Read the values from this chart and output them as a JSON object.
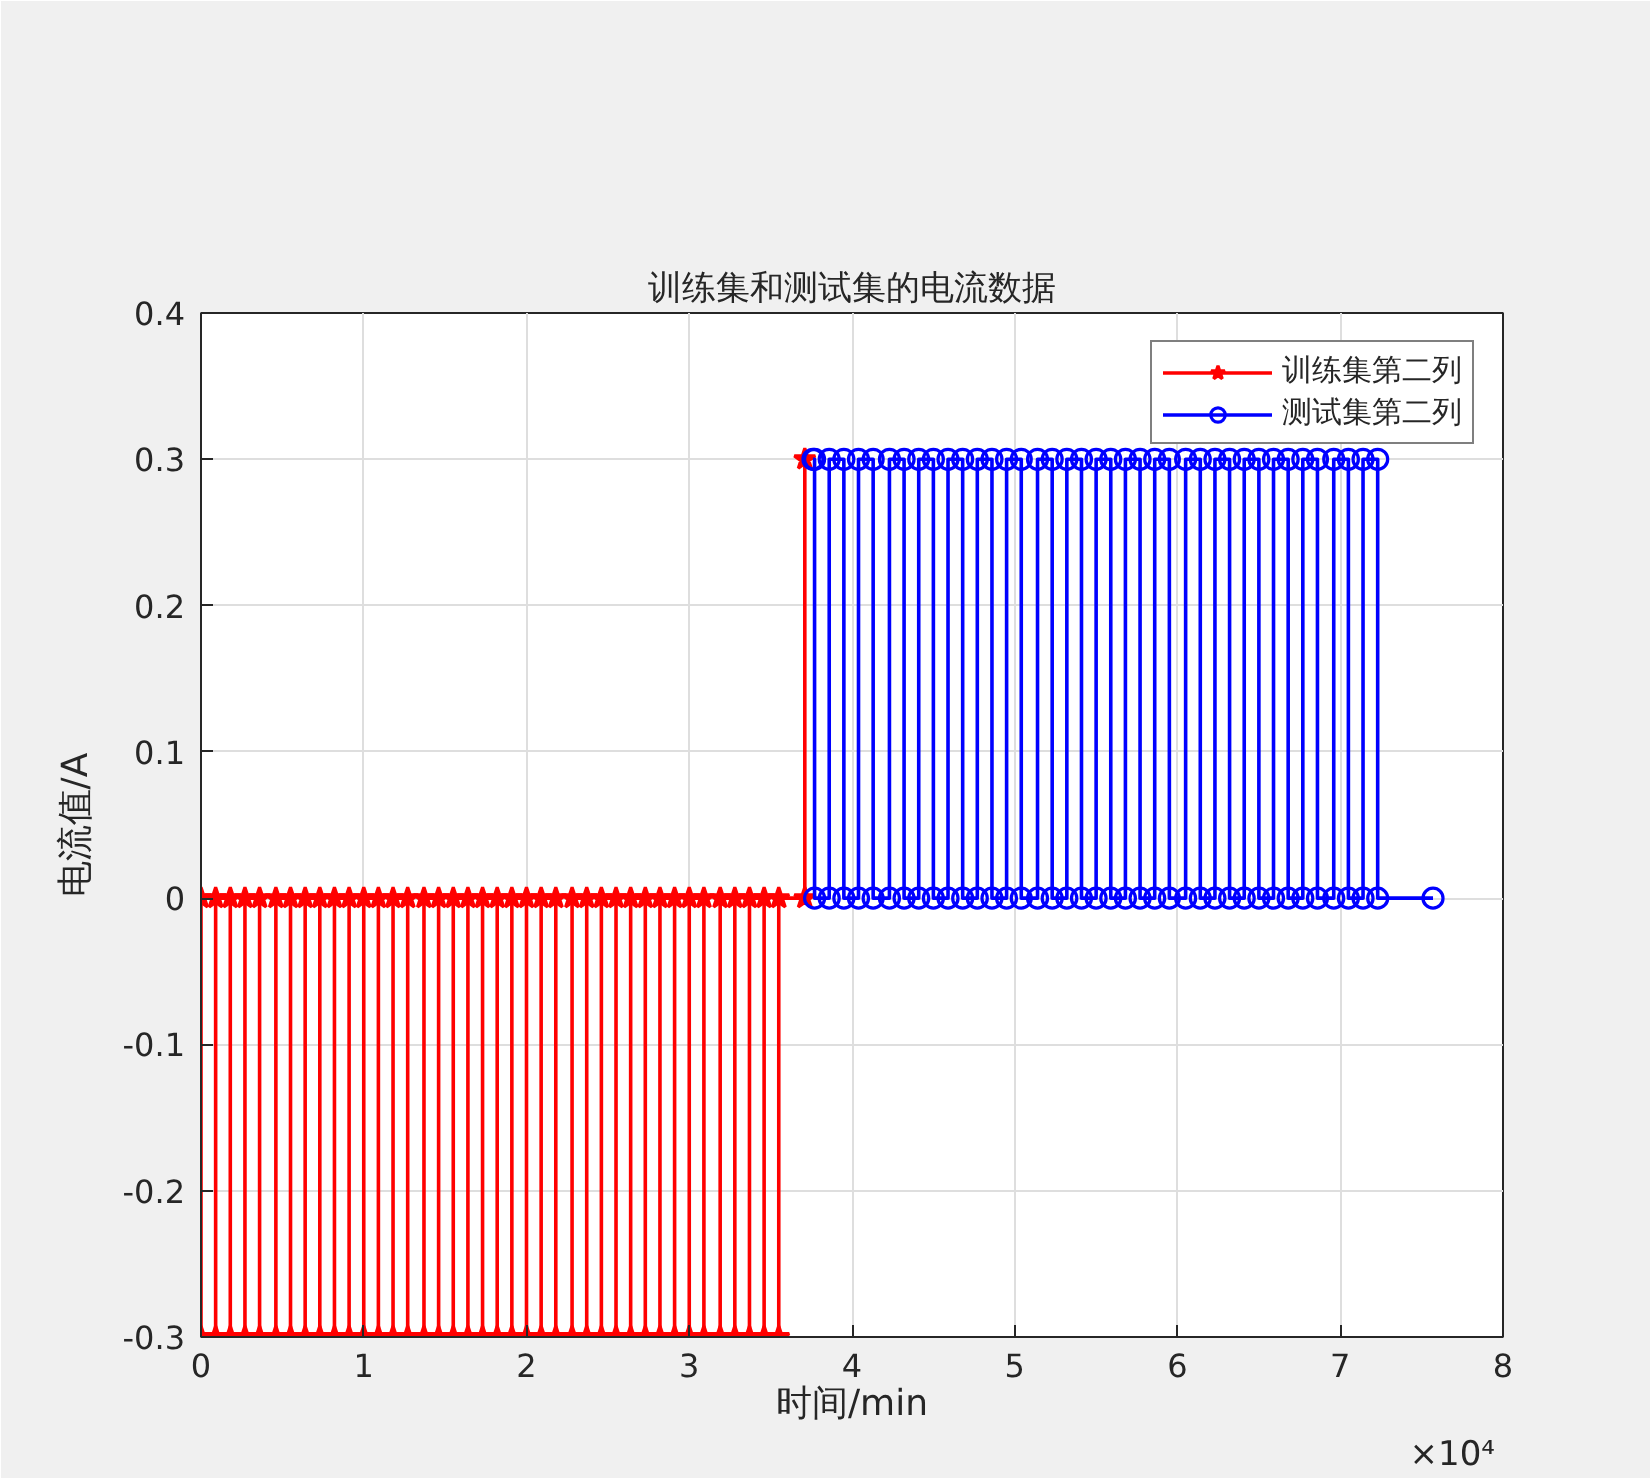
{
  "chart_data": {
    "type": "line",
    "title": "训练集和测试集的电流数据",
    "xlabel": "时间/min",
    "ylabel": "电流值/A",
    "xlim": [
      0,
      8
    ],
    "ylim": [
      -0.3,
      0.4
    ],
    "xticks": [
      0,
      1,
      2,
      3,
      4,
      5,
      6,
      7,
      8
    ],
    "yticks": [
      -0.3,
      -0.2,
      -0.1,
      0,
      0.1,
      0.2,
      0.3,
      0.4
    ],
    "annotations": [
      "×10⁴"
    ],
    "grid": true,
    "legend": "top right",
    "line_style": "solid",
    "series": [
      {
        "name": "训练集第二列",
        "color": "#ff0000",
        "marker": "star",
        "x": [
          0,
          0,
          0.09,
          0.09,
          0.18,
          0.18,
          0.27,
          0.27,
          0.36,
          0.36,
          0.46,
          0.46,
          0.55,
          0.55,
          0.64,
          0.64,
          0.73,
          0.73,
          0.82,
          0.82,
          0.91,
          0.91,
          1.0,
          1.0,
          1.09,
          1.09,
          1.18,
          1.18,
          1.27,
          1.27,
          1.37,
          1.37,
          1.46,
          1.46,
          1.55,
          1.55,
          1.64,
          1.64,
          1.73,
          1.73,
          1.82,
          1.82,
          1.91,
          1.91,
          2.0,
          2.0,
          2.09,
          2.09,
          2.18,
          2.18,
          2.28,
          2.28,
          2.37,
          2.37,
          2.46,
          2.46,
          2.55,
          2.55,
          2.64,
          2.64,
          2.73,
          2.73,
          2.82,
          2.82,
          2.91,
          2.91,
          3.0,
          3.0,
          3.09,
          3.09,
          3.19,
          3.19,
          3.28,
          3.28,
          3.37,
          3.37,
          3.46,
          3.46,
          3.55,
          3.55,
          3.71,
          3.71
        ],
        "values": [
          0,
          -0.3,
          -0.3,
          0,
          0,
          -0.3,
          -0.3,
          0,
          0,
          -0.3,
          -0.3,
          0,
          0,
          -0.3,
          -0.3,
          0,
          0,
          -0.3,
          -0.3,
          0,
          0,
          -0.3,
          -0.3,
          0,
          0,
          -0.3,
          -0.3,
          0,
          0,
          -0.3,
          -0.3,
          0,
          0,
          -0.3,
          -0.3,
          0,
          0,
          -0.3,
          -0.3,
          0,
          0,
          -0.3,
          -0.3,
          0,
          0,
          -0.3,
          -0.3,
          0,
          0,
          -0.3,
          -0.3,
          0,
          0,
          -0.3,
          -0.3,
          0,
          0,
          -0.3,
          -0.3,
          0,
          0,
          -0.3,
          -0.3,
          0,
          0,
          -0.3,
          -0.3,
          0,
          0,
          -0.3,
          -0.3,
          0,
          0,
          -0.3,
          -0.3,
          0,
          0,
          -0.3,
          -0.3,
          0,
          0,
          0.3
        ]
      },
      {
        "name": "测试集第二列",
        "color": "#0000ff",
        "marker": "circle",
        "x": [
          3.76,
          3.77,
          3.77,
          3.86,
          3.86,
          3.95,
          3.95,
          4.04,
          4.04,
          4.13,
          4.13,
          4.23,
          4.23,
          4.32,
          4.32,
          4.41,
          4.41,
          4.5,
          4.5,
          4.59,
          4.59,
          4.68,
          4.68,
          4.77,
          4.77,
          4.86,
          4.86,
          4.95,
          4.95,
          5.04,
          5.04,
          5.14,
          5.14,
          5.23,
          5.23,
          5.32,
          5.32,
          5.41,
          5.41,
          5.5,
          5.5,
          5.59,
          5.59,
          5.68,
          5.68,
          5.77,
          5.77,
          5.86,
          5.86,
          5.95,
          5.95,
          6.05,
          6.05,
          6.14,
          6.14,
          6.23,
          6.23,
          6.32,
          6.32,
          6.41,
          6.41,
          6.5,
          6.5,
          6.59,
          6.59,
          6.68,
          6.68,
          6.77,
          6.77,
          6.86,
          6.86,
          6.96,
          6.96,
          7.05,
          7.05,
          7.14,
          7.14,
          7.23,
          7.23,
          7.57
        ],
        "values": [
          0.3,
          0.3,
          0,
          0,
          0.3,
          0.3,
          0,
          0,
          0.3,
          0.3,
          0,
          0,
          0.3,
          0.3,
          0,
          0,
          0.3,
          0.3,
          0,
          0,
          0.3,
          0.3,
          0,
          0,
          0.3,
          0.3,
          0,
          0,
          0.3,
          0.3,
          0,
          0,
          0.3,
          0.3,
          0,
          0,
          0.3,
          0.3,
          0,
          0,
          0.3,
          0.3,
          0,
          0,
          0.3,
          0.3,
          0,
          0,
          0.3,
          0.3,
          0,
          0,
          0.3,
          0.3,
          0,
          0,
          0.3,
          0.3,
          0,
          0,
          0.3,
          0.3,
          0,
          0,
          0.3,
          0.3,
          0,
          0,
          0.3,
          0.3,
          0,
          0,
          0.3,
          0.3,
          0,
          0,
          0.3,
          0.3,
          0,
          0
        ]
      }
    ]
  }
}
